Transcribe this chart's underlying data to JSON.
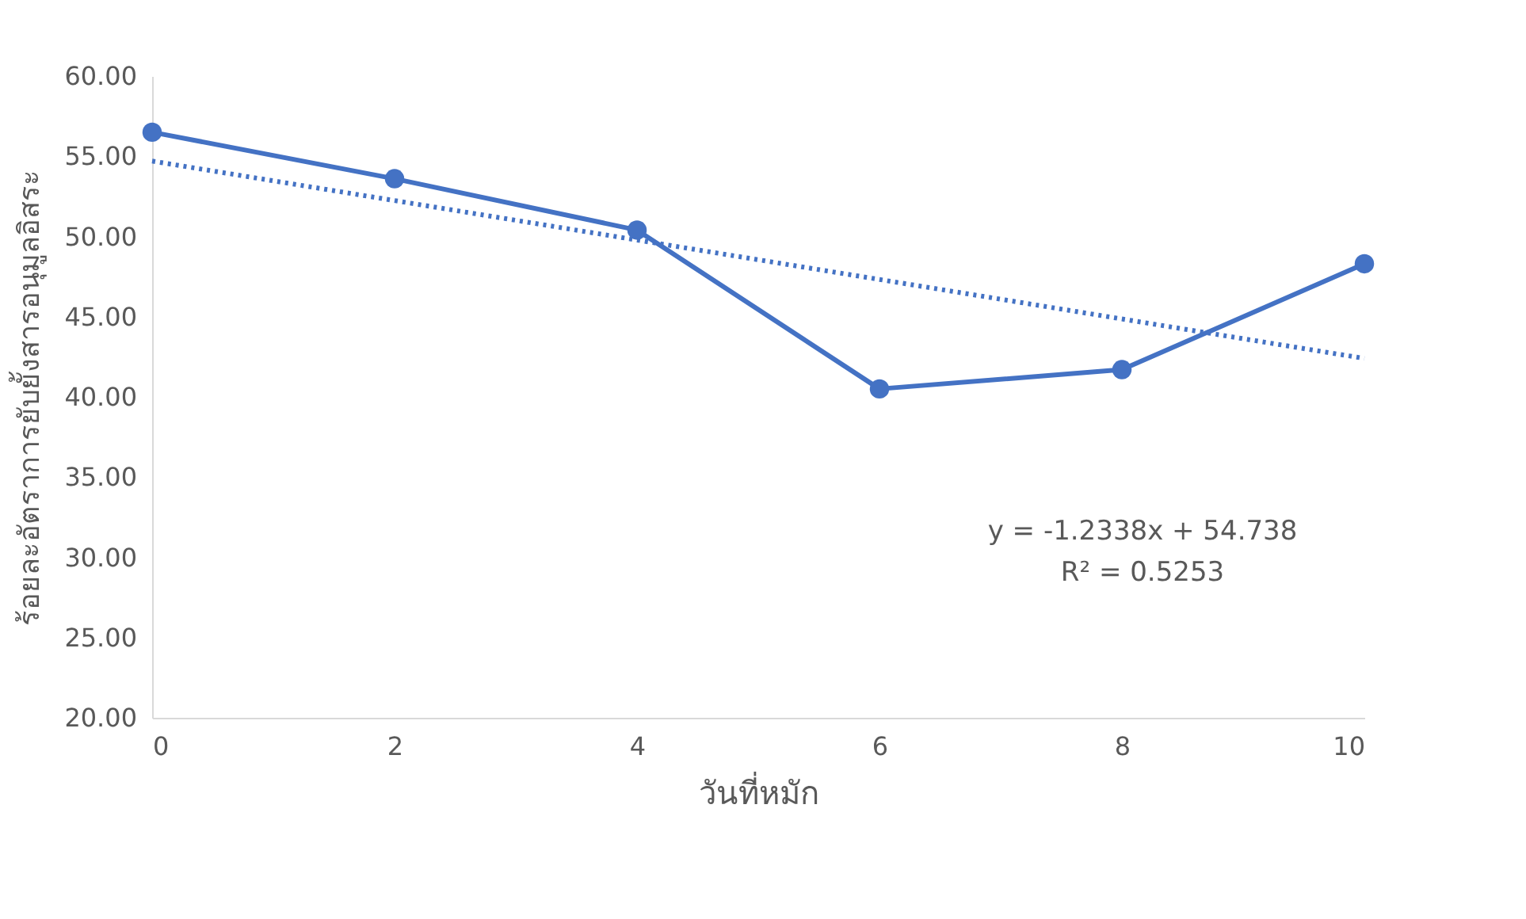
{
  "chart_data": {
    "type": "line",
    "xlabel": "วันที่หมัก",
    "ylabel": "ร้อยละอัตราการยับยั้งสารอนุมูลอิสระ",
    "x": [
      0,
      2,
      4,
      6,
      8,
      10
    ],
    "series": [
      {
        "color": "#4472c4",
        "values": [
          56.5,
          53.6,
          50.4,
          40.5,
          41.7,
          48.3
        ],
        "marker": "circle",
        "line_style": "solid"
      },
      {
        "type": "line",
        "color": "#4472c4",
        "x": [
          0,
          10
        ],
        "values": [
          54.7,
          42.4
        ],
        "marker": "none",
        "line_style": "dotted"
      }
    ],
    "xlim": [
      0,
      10
    ],
    "xticks": [
      0,
      2,
      4,
      6,
      8,
      10
    ],
    "ylim": [
      20,
      60
    ],
    "yticks": [
      {
        "value": 20,
        "label": "20.00"
      },
      {
        "value": 25,
        "label": "25.00"
      },
      {
        "value": 30,
        "label": "30.00"
      },
      {
        "value": 35,
        "label": "35.00"
      },
      {
        "value": 40,
        "label": "40.00"
      },
      {
        "value": 45,
        "label": "45.00"
      },
      {
        "value": 50,
        "label": "50.00"
      },
      {
        "value": 55,
        "label": "55.00"
      },
      {
        "value": 60,
        "label": "60.00"
      }
    ],
    "annotations": [
      "y = -1.2338x + 54.738",
      "R² = 0.5253"
    ],
    "grid": false
  }
}
